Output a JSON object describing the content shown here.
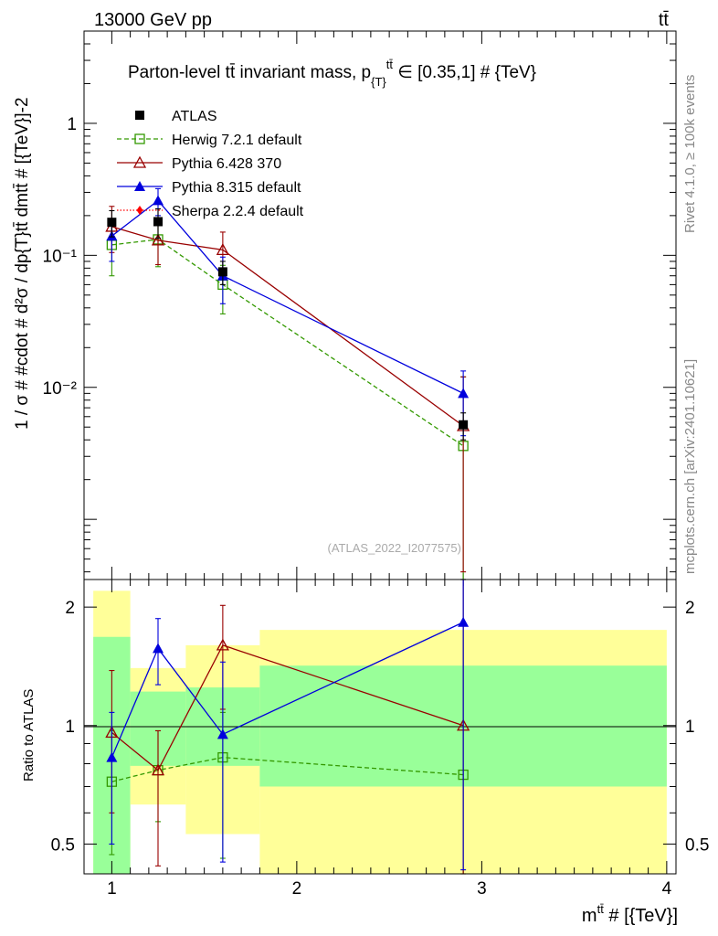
{
  "header": {
    "energy_label": "13000 GeV pp",
    "process_label": "tt̄"
  },
  "side_labels": {
    "rivet": "Rivet 4.1.0, ≥ 100k events",
    "mcplots": "mcplots.cern.ch [arXiv:2401.10621]"
  },
  "chart_data": [
    {
      "type": "scatter",
      "panel": "main",
      "title": "Parton-level tt̄ invariant mass, p_{T}^{tt̄} ∈ [0.35,1] # {TeV}",
      "title_parts": {
        "main": "Parton-level tt̄ invariant mass, p",
        "sub": "{T}",
        "sup": "tt̄",
        "tail": " ∈ [0.35,1] # {TeV}"
      },
      "xlabel": "m^{tt̄} # [{TeV}]",
      "ylabel": "1 / σ # #cdot # d²σ / dp_{T}^{tt̄} dm^{tt̄} # [{TeV}^{-2}]",
      "ylabel_text": "1 / σ # #cdot # d²σ / dp{T}tt̄ dmtt̄ # [{TeV}]-2",
      "xlim": [
        0.85,
        4.05
      ],
      "ylim": [
        0.00035,
        5
      ],
      "yscale": "log",
      "y_ticks": [
        {
          "value": 1,
          "label": "1"
        },
        {
          "value": 0.1,
          "label": "10⁻¹"
        },
        {
          "value": 0.01,
          "label": "10⁻²"
        }
      ],
      "watermark": "(ATLAS_2022_I2077575)",
      "legend_position": "top-left",
      "series": [
        {
          "name": "ATLAS",
          "color": "#000000",
          "marker": "square",
          "x": [
            1.0,
            1.25,
            1.6,
            2.9
          ],
          "values": [
            0.178,
            0.18,
            0.075,
            0.0052
          ],
          "err_low": [
            0.04,
            0.045,
            0.015,
            0.0012
          ],
          "err_high": [
            0.04,
            0.045,
            0.015,
            0.0012
          ]
        },
        {
          "name": "Herwig 7.2.1 default",
          "color": "#339900",
          "marker": "open-square",
          "dashed": true,
          "x": [
            1.0,
            1.25,
            1.6,
            2.9
          ],
          "values": [
            0.12,
            0.132,
            0.06,
            0.0036
          ],
          "err_low": [
            0.05,
            0.05,
            0.024,
            0.00326
          ],
          "err_high": [
            0.05,
            0.05,
            0.024,
            0.0084
          ]
        },
        {
          "name": "Pythia 6.428 370",
          "color": "#990000",
          "marker": "open-triangle",
          "x": [
            1.0,
            1.25,
            1.6,
            2.9
          ],
          "values": [
            0.165,
            0.13,
            0.11,
            0.0051
          ],
          "err_low": [
            0.06,
            0.045,
            0.04,
            0.0047
          ],
          "err_high": [
            0.07,
            0.05,
            0.04,
            0.0069
          ]
        },
        {
          "name": "Pythia 8.315 default",
          "color": "#0000dd",
          "marker": "triangle",
          "x": [
            1.0,
            1.25,
            1.6,
            2.9
          ],
          "values": [
            0.14,
            0.26,
            0.07,
            0.009
          ],
          "err_low": [
            0.05,
            0.06,
            0.027,
            0.0047
          ],
          "err_high": [
            0.05,
            0.06,
            0.027,
            0.0043
          ]
        },
        {
          "name": "Sherpa 2.2.4 default",
          "color": "#ff0000",
          "marker": "diamond",
          "dotted": true,
          "x": [],
          "values": []
        }
      ]
    },
    {
      "type": "scatter",
      "panel": "ratio",
      "ylabel": "Ratio to ATLAS",
      "xlim": [
        0.85,
        4.05
      ],
      "ylim": [
        0.42,
        2.35
      ],
      "yscale": "log",
      "x_ticks": [
        {
          "value": 1,
          "label": "1"
        },
        {
          "value": 2,
          "label": "2"
        },
        {
          "value": 3,
          "label": "3"
        },
        {
          "value": 4,
          "label": "4"
        }
      ],
      "y_ticks": [
        {
          "value": 2,
          "label": "2"
        },
        {
          "value": 1,
          "label": "1"
        },
        {
          "value": 0.5,
          "label": "0.5"
        }
      ],
      "bands": [
        {
          "x_range": [
            0.9,
            1.1
          ],
          "green": [
            0.42,
            1.68
          ],
          "yellow": [
            0.42,
            2.2
          ]
        },
        {
          "x_range": [
            1.1,
            1.4
          ],
          "green": [
            0.79,
            1.22
          ],
          "yellow": [
            0.63,
            1.4
          ]
        },
        {
          "x_range": [
            1.4,
            1.8
          ],
          "green": [
            0.79,
            1.25
          ],
          "yellow": [
            0.53,
            1.6
          ]
        },
        {
          "x_range": [
            1.8,
            4.0
          ],
          "green": [
            0.7,
            1.42
          ],
          "yellow": [
            0.42,
            1.75
          ]
        }
      ],
      "series": [
        {
          "name": "Herwig 7.2.1 default",
          "color": "#339900",
          "marker": "open-square",
          "dashed": true,
          "x": [
            1.0,
            1.25,
            1.6,
            2.9
          ],
          "values": [
            0.72,
            0.77,
            0.83,
            0.75
          ],
          "err_low": [
            0.25,
            0.2,
            0.37,
            0.34
          ],
          "err_high": [
            0.25,
            0.2,
            0.25,
            1.6
          ]
        },
        {
          "name": "Pythia 6.428 370",
          "color": "#990000",
          "marker": "open-triangle",
          "x": [
            1.0,
            1.25,
            1.6,
            2.9
          ],
          "values": [
            0.96,
            0.77,
            1.6,
            1.0
          ],
          "err_low": [
            0.36,
            0.33,
            0.5,
            0.58
          ],
          "err_high": [
            0.42,
            0.2,
            0.42,
            1.4
          ]
        },
        {
          "name": "Pythia 8.315 default",
          "color": "#0000dd",
          "marker": "triangle",
          "x": [
            1.0,
            1.25,
            1.6,
            2.9
          ],
          "values": [
            0.83,
            1.57,
            0.95,
            1.83
          ],
          "err_low": [
            0.33,
            0.3,
            0.5,
            1.4
          ],
          "err_high": [
            0.25,
            0.3,
            0.5,
            0.6
          ]
        }
      ]
    }
  ]
}
